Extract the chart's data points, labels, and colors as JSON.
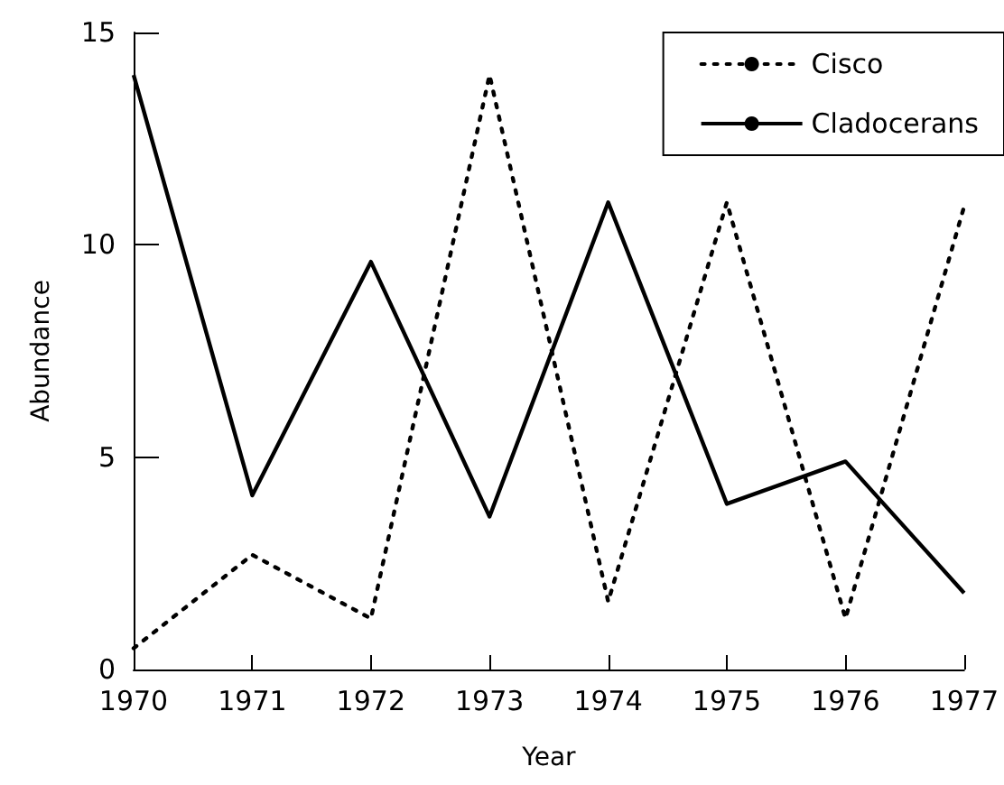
{
  "chart_data": {
    "type": "line",
    "xlabel": "Year",
    "ylabel": "Abundance",
    "x": [
      1970,
      1971,
      1972,
      1973,
      1974,
      1975,
      1976,
      1977
    ],
    "xlim": [
      1970,
      1977
    ],
    "xticks": [
      1970,
      1971,
      1972,
      1973,
      1974,
      1975,
      1976,
      1977
    ],
    "ylim": [
      0,
      15
    ],
    "yticks": [
      0,
      5,
      10,
      15
    ],
    "series": [
      {
        "name": "Cisco",
        "color": "#000000",
        "line_style": "dotted",
        "values": [
          0.5,
          2.7,
          1.2,
          14.0,
          1.6,
          11.0,
          1.2,
          10.9
        ]
      },
      {
        "name": "Cladocerans",
        "color": "#000000",
        "line_style": "solid",
        "values": [
          14.0,
          4.1,
          9.6,
          3.6,
          11.0,
          3.9,
          4.9,
          1.8
        ]
      }
    ],
    "grid": false,
    "legend": "top right",
    "marker": "none"
  }
}
